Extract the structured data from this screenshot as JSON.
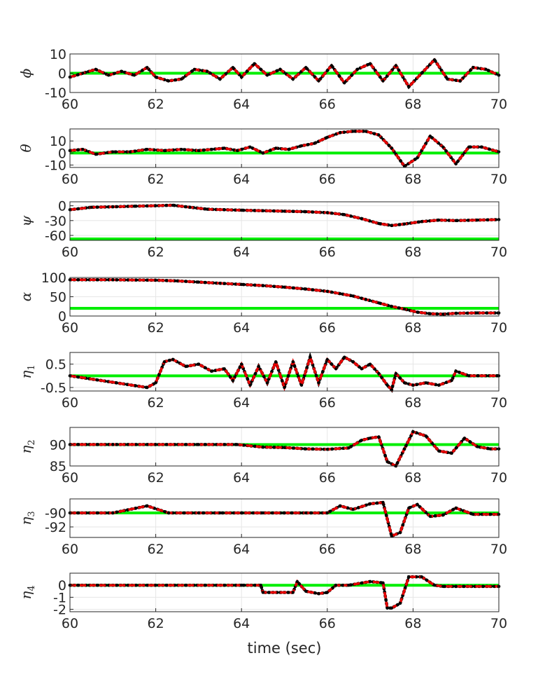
{
  "chart_data": [
    {
      "type": "line",
      "ylabel": "ϕ",
      "ylabel_sub": "",
      "xlim": [
        60,
        70
      ],
      "ylim": [
        -10,
        10
      ],
      "xticks": [
        "60",
        "62",
        "64",
        "66",
        "68",
        "70"
      ],
      "yticks": [
        -10,
        0,
        10
      ],
      "ytick_labels": [
        "-10",
        "0",
        "10"
      ],
      "grid": true,
      "reference": 0,
      "x": [
        60,
        60.3,
        60.6,
        60.9,
        61.2,
        61.5,
        61.8,
        62.0,
        62.3,
        62.6,
        62.9,
        63.2,
        63.5,
        63.8,
        64.0,
        64.3,
        64.6,
        64.9,
        65.2,
        65.5,
        65.8,
        66.1,
        66.4,
        66.7,
        67.0,
        67.3,
        67.6,
        67.9,
        68.2,
        68.5,
        68.8,
        69.1,
        69.4,
        69.7,
        70.0
      ],
      "values": [
        -2,
        0,
        2,
        -1,
        1,
        -1,
        3,
        -2,
        -4,
        -3,
        2,
        1,
        -3,
        3,
        -2,
        5,
        -1,
        2,
        -3,
        3,
        -4,
        4,
        -5,
        2,
        5,
        -4,
        4,
        -7,
        0,
        7,
        -3,
        -4,
        3,
        2,
        -1
      ]
    },
    {
      "type": "line",
      "ylabel": "θ",
      "ylabel_sub": "",
      "xlim": [
        60,
        70
      ],
      "ylim": [
        -12,
        20
      ],
      "xticks": [
        "60",
        "62",
        "64",
        "66",
        "68",
        "70"
      ],
      "yticks": [
        -10,
        0,
        10
      ],
      "ytick_labels": [
        "-10",
        "0",
        "10"
      ],
      "grid": true,
      "reference": 0,
      "x": [
        60,
        60.3,
        60.6,
        61.0,
        61.4,
        61.8,
        62.2,
        62.6,
        63.0,
        63.3,
        63.6,
        63.9,
        64.2,
        64.5,
        64.8,
        65.1,
        65.4,
        65.7,
        66.0,
        66.3,
        66.6,
        66.9,
        67.2,
        67.5,
        67.8,
        68.1,
        68.4,
        68.7,
        69.0,
        69.3,
        69.6,
        70.0
      ],
      "values": [
        2,
        3,
        -1,
        1,
        1,
        3,
        2,
        3,
        2,
        3,
        4,
        2,
        5,
        0,
        4,
        3,
        6,
        8,
        13,
        17,
        18,
        18,
        15,
        4,
        -11,
        -4,
        14,
        5,
        -9,
        5,
        5,
        1
      ]
    },
    {
      "type": "line",
      "ylabel": "ψ",
      "ylabel_sub": "",
      "xlim": [
        60,
        70
      ],
      "ylim": [
        -70,
        8
      ],
      "xticks": [
        "60",
        "62",
        "64",
        "66",
        "68",
        "70"
      ],
      "yticks": [
        -60,
        -30,
        0
      ],
      "ytick_labels": [
        "-60",
        "-30",
        "0"
      ],
      "grid": true,
      "reference": -70,
      "x": [
        60,
        60.5,
        61,
        61.5,
        62,
        62.4,
        62.8,
        63.2,
        63.6,
        64,
        64.5,
        65,
        65.5,
        66,
        66.4,
        66.8,
        67.2,
        67.5,
        67.8,
        68.2,
        68.6,
        69,
        69.5,
        70
      ],
      "values": [
        -8,
        -3,
        -2,
        -1,
        0,
        1,
        -3,
        -7,
        -8,
        -9,
        -10,
        -11,
        -12,
        -14,
        -18,
        -26,
        -36,
        -40,
        -37,
        -32,
        -29,
        -30,
        -29,
        -28
      ]
    },
    {
      "type": "line",
      "ylabel": "α",
      "ylabel_sub": "",
      "xlim": [
        60,
        70
      ],
      "ylim": [
        0,
        100
      ],
      "xticks": [
        "60",
        "62",
        "64",
        "66",
        "68",
        "70"
      ],
      "yticks": [
        0,
        50,
        100
      ],
      "ytick_labels": [
        "0",
        "50",
        "100"
      ],
      "grid": true,
      "reference": 20,
      "x": [
        60,
        61,
        62,
        62.5,
        63,
        63.5,
        64,
        64.5,
        65,
        65.5,
        66,
        66.3,
        66.6,
        66.9,
        67.2,
        67.5,
        67.8,
        68.1,
        68.4,
        68.7,
        69,
        69.5,
        70
      ],
      "values": [
        94,
        94,
        93,
        91,
        88,
        85,
        82,
        79,
        75,
        70,
        64,
        58,
        52,
        43,
        34,
        25,
        18,
        10,
        6,
        5,
        7,
        8,
        8
      ]
    },
    {
      "type": "line",
      "ylabel": "η",
      "ylabel_sub": "1",
      "xlim": [
        60,
        70
      ],
      "ylim": [
        -0.65,
        1.0
      ],
      "xticks": [
        "60",
        "62",
        "64",
        "66",
        "68",
        "70"
      ],
      "yticks": [
        -0.5,
        0.5
      ],
      "ytick_labels": [
        "-0.5",
        "0.5"
      ],
      "grid": true,
      "reference": 0,
      "x": [
        60,
        61.8,
        62.0,
        62.2,
        62.4,
        62.7,
        63.0,
        63.3,
        63.6,
        63.8,
        64.0,
        64.2,
        64.4,
        64.6,
        64.8,
        65.0,
        65.2,
        65.4,
        65.6,
        65.8,
        66.0,
        66.2,
        66.4,
        66.6,
        66.8,
        67.0,
        67.2,
        67.4,
        67.5,
        67.6,
        67.8,
        68.0,
        68.3,
        68.6,
        68.9,
        69.0,
        69.3,
        70
      ],
      "values": [
        0,
        -0.5,
        -0.3,
        0.6,
        0.7,
        0.4,
        0.5,
        0.2,
        0.3,
        -0.2,
        0.5,
        -0.4,
        0.4,
        -0.3,
        0.6,
        -0.5,
        0.6,
        -0.4,
        0.8,
        -0.3,
        0.7,
        0.3,
        0.8,
        0.6,
        0.3,
        0.5,
        0.1,
        -0.4,
        -0.6,
        0.1,
        -0.3,
        -0.4,
        -0.3,
        -0.4,
        -0.2,
        0.2,
        0,
        0
      ]
    },
    {
      "type": "line",
      "ylabel": "η",
      "ylabel_sub": "2",
      "xlim": [
        60,
        70
      ],
      "ylim": [
        85,
        94
      ],
      "xticks": [
        "60",
        "62",
        "64",
        "66",
        "68",
        "70"
      ],
      "yticks": [
        85,
        90
      ],
      "ytick_labels": [
        "85",
        "90"
      ],
      "grid": true,
      "reference": 90,
      "x": [
        60,
        61,
        62,
        63,
        63.9,
        64.5,
        65,
        65.5,
        66,
        66.5,
        66.8,
        67.0,
        67.2,
        67.4,
        67.6,
        67.8,
        68.0,
        68.3,
        68.6,
        68.9,
        69.2,
        69.5,
        69.8,
        70
      ],
      "values": [
        90,
        90,
        90,
        90,
        90,
        89.4,
        89.3,
        89,
        88.9,
        89.2,
        91,
        91.5,
        91.8,
        86,
        85,
        89,
        93,
        92,
        88.5,
        88,
        91.5,
        89.5,
        89,
        89
      ]
    },
    {
      "type": "line",
      "ylabel": "η",
      "ylabel_sub": "3",
      "xlim": [
        60,
        70
      ],
      "ylim": [
        -93.5,
        -88
      ],
      "xticks": [
        "60",
        "62",
        "64",
        "66",
        "68",
        "70"
      ],
      "yticks": [
        -92,
        -90
      ],
      "ytick_labels": [
        "-92",
        "-90"
      ],
      "grid": true,
      "reference": -90,
      "x": [
        60,
        61,
        61.8,
        62.3,
        63,
        63.5,
        64,
        64.5,
        65,
        65.5,
        66,
        66.3,
        66.6,
        67.0,
        67.3,
        67.5,
        67.7,
        67.9,
        68.1,
        68.4,
        68.7,
        69,
        69.4,
        70
      ],
      "values": [
        -90,
        -90,
        -89,
        -90,
        -90,
        -90,
        -90,
        -90,
        -90,
        -90,
        -90,
        -89,
        -89.5,
        -88.7,
        -88.5,
        -93.3,
        -92.8,
        -89.3,
        -88.8,
        -90.5,
        -90.3,
        -89.3,
        -90.2,
        -90.2
      ]
    },
    {
      "type": "line",
      "ylabel": "η",
      "ylabel_sub": "4",
      "xlim": [
        60,
        70
      ],
      "ylim": [
        -2.2,
        1.0
      ],
      "xticks": [
        "60",
        "62",
        "64",
        "66",
        "68",
        "70"
      ],
      "yticks": [
        -2,
        -1,
        0
      ],
      "ytick_labels": [
        "-2",
        "-1",
        "0"
      ],
      "grid": true,
      "reference": 0,
      "x": [
        60,
        62,
        64,
        64.45,
        64.5,
        65.2,
        65.3,
        65.5,
        65.8,
        66.0,
        66.2,
        66.5,
        67.0,
        67.3,
        67.4,
        67.5,
        67.7,
        67.9,
        68.2,
        68.5,
        68.7,
        69.0,
        70
      ],
      "values": [
        0,
        0,
        0,
        0,
        -0.6,
        -0.6,
        0.3,
        -0.5,
        -0.7,
        -0.6,
        0,
        0,
        0.3,
        0.2,
        -1.9,
        -1.9,
        -1.5,
        0.7,
        0.7,
        0,
        -0.1,
        -0.1,
        -0.1
      ]
    }
  ],
  "xlabel": "time (sec)",
  "colors": {
    "reference": "#00ee00",
    "series_red": "#e60000",
    "series_black": "#000000",
    "grid": "#e6e6e6",
    "axis": "#262626"
  }
}
